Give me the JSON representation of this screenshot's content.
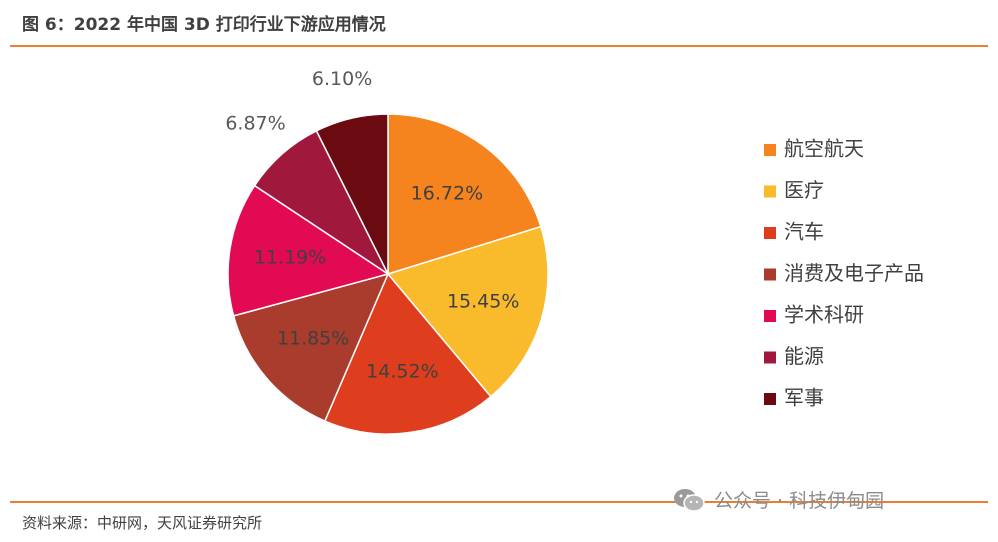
{
  "figure": {
    "title": "图 6：2022 年中国 3D 打印行业下游应用情况",
    "source": "资料来源：中研网，天风证券研究所"
  },
  "watermark": {
    "text": "公众号 · 科技伊甸园",
    "icon": "wechat-icon"
  },
  "chart_data": {
    "type": "pie",
    "title": "",
    "legend_position": "right",
    "slices": [
      {
        "label": "航空航天",
        "value": 16.72,
        "display": "16.72%",
        "color": "#F5841F"
      },
      {
        "label": "医疗",
        "value": 15.45,
        "display": "15.45%",
        "color": "#F9BA2B"
      },
      {
        "label": "汽车",
        "value": 14.52,
        "display": "14.52%",
        "color": "#DE3E1D"
      },
      {
        "label": "消费及电子产品",
        "value": 11.85,
        "display": "11.85%",
        "color": "#A93C2C"
      },
      {
        "label": "学术科研",
        "value": 11.19,
        "display": "11.19%",
        "color": "#E30A54"
      },
      {
        "label": "能源",
        "value": 6.87,
        "display": "6.87%",
        "color": "#A0193D"
      },
      {
        "label": "军事",
        "value": 6.1,
        "display": "6.10%",
        "color": "#6B0A10"
      }
    ]
  }
}
